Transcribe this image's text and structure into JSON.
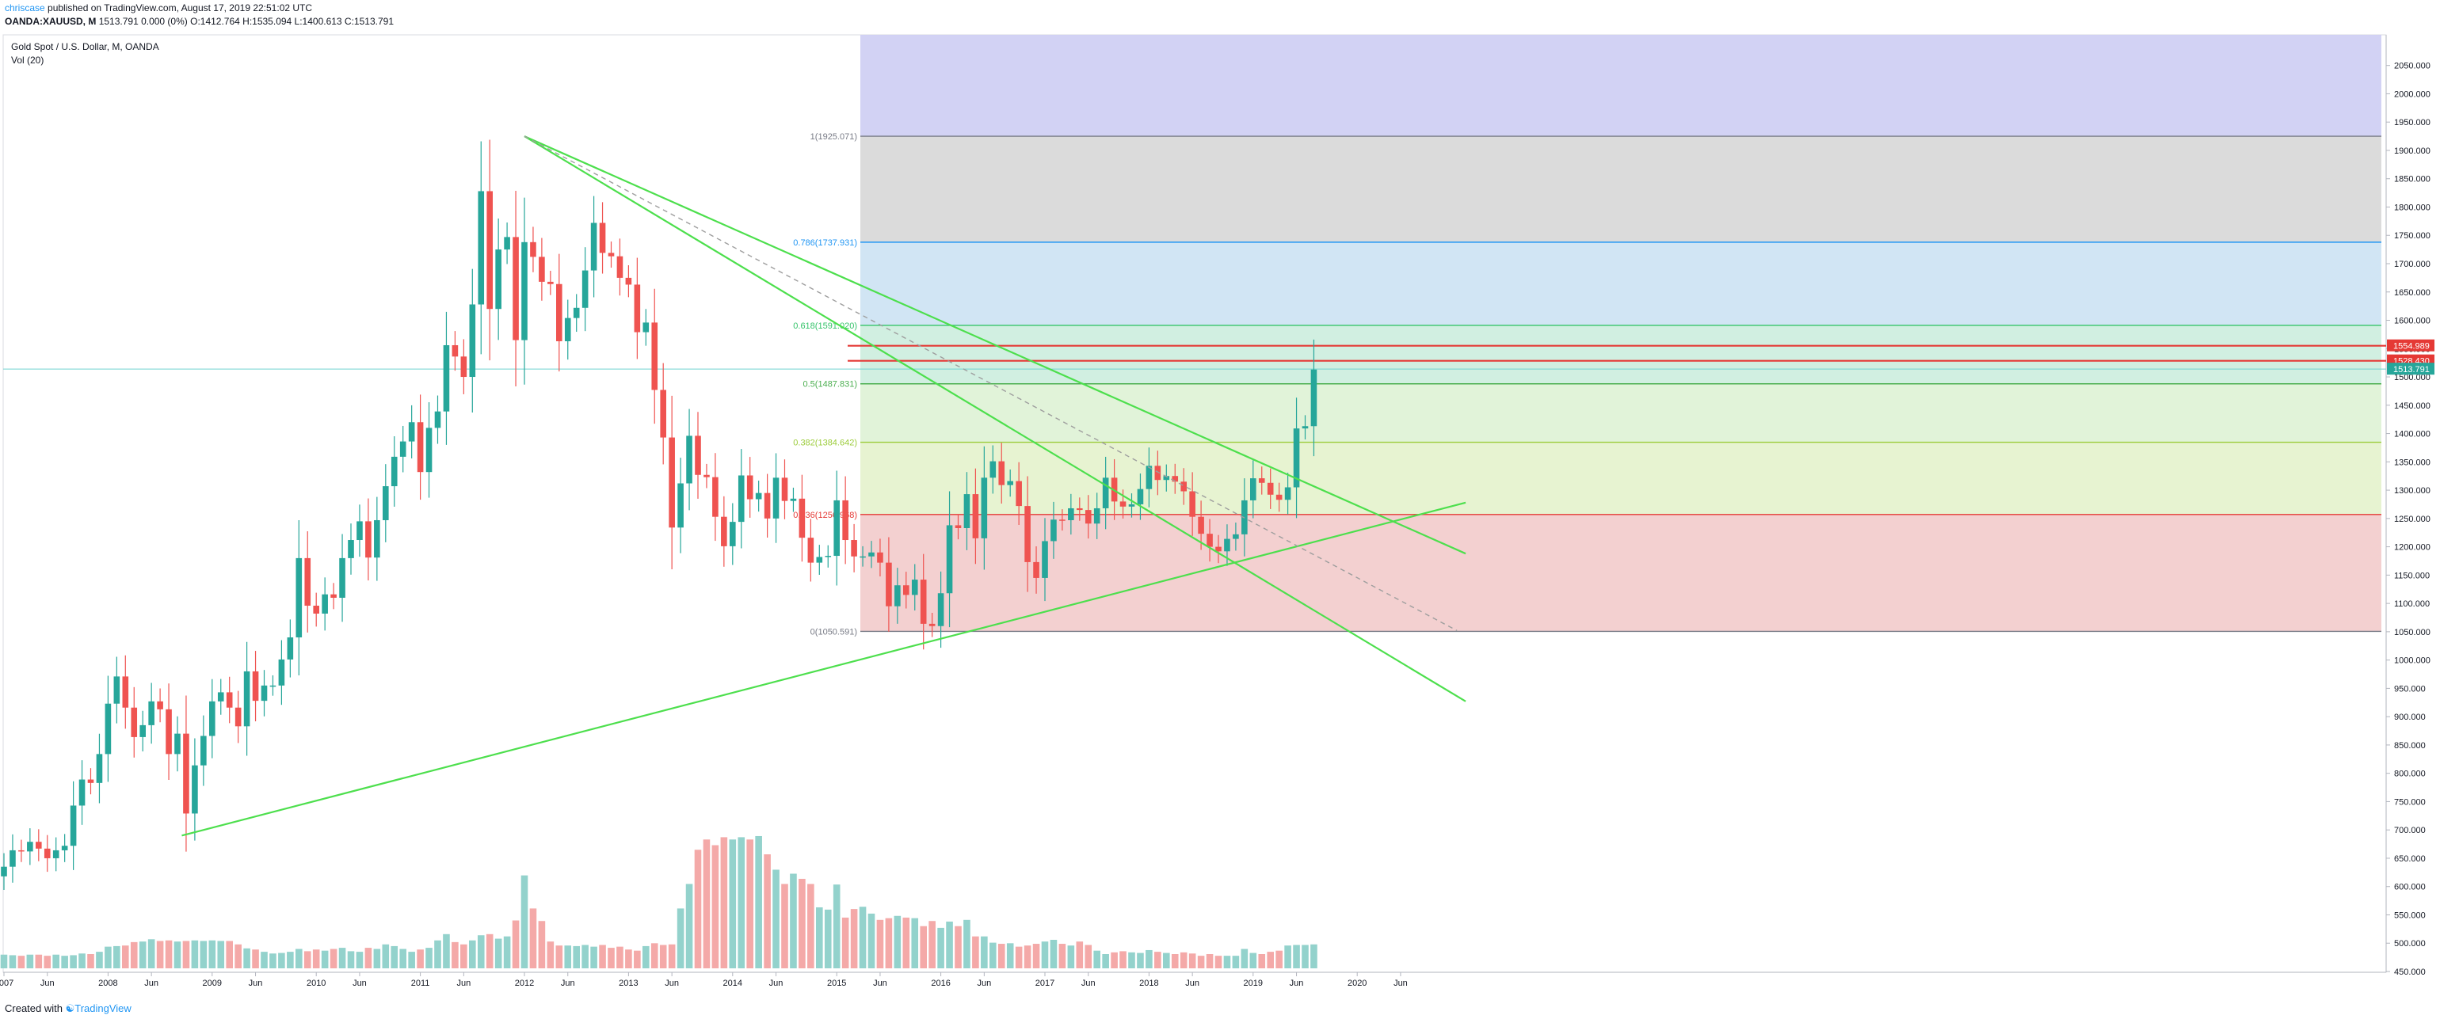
{
  "header": {
    "author": "chriscase",
    "published_text": "published on TradingView.com, August 17, 2019 22:51:02 UTC",
    "symbol": "OANDA:XAUUSD, M",
    "quote": "1513.791 0.000 (0%) O:1412.764 H:1535.094 L:1400.613 C:1513.791"
  },
  "footer": {
    "created_with": "Created with",
    "brand": "TradingView"
  },
  "chart_data": {
    "type": "candlestick",
    "title": "Gold Spot / U.S. Dollar, M, OANDA",
    "volume_label": "Vol (20)",
    "ylim": [
      430,
      2090
    ],
    "y_ticks": [
      "450.000",
      "500.000",
      "550.000",
      "600.000",
      "650.000",
      "700.000",
      "750.000",
      "800.000",
      "850.000",
      "900.000",
      "950.000",
      "1000.000",
      "1050.000",
      "1100.000",
      "1150.000",
      "1200.000",
      "1250.000",
      "1300.000",
      "1350.000",
      "1400.000",
      "1450.000",
      "1500.000",
      "1550.000",
      "1600.000",
      "1650.000",
      "1700.000",
      "1750.000",
      "1800.000",
      "1850.000",
      "1900.000",
      "1950.000",
      "2000.000",
      "2050.000"
    ],
    "x_ticks": [
      {
        "label": "2007",
        "index": 0
      },
      {
        "label": "Jun",
        "index": 5
      },
      {
        "label": "2008",
        "index": 12
      },
      {
        "label": "Jun",
        "index": 17
      },
      {
        "label": "2009",
        "index": 24
      },
      {
        "label": "Jun",
        "index": 29
      },
      {
        "label": "2010",
        "index": 36
      },
      {
        "label": "Jun",
        "index": 41
      },
      {
        "label": "2011",
        "index": 48
      },
      {
        "label": "Jun",
        "index": 53
      },
      {
        "label": "2012",
        "index": 60
      },
      {
        "label": "Jun",
        "index": 65
      },
      {
        "label": "2013",
        "index": 72
      },
      {
        "label": "Jun",
        "index": 77
      },
      {
        "label": "2014",
        "index": 84
      },
      {
        "label": "Jun",
        "index": 89
      },
      {
        "label": "2015",
        "index": 96
      },
      {
        "label": "Jun",
        "index": 101
      },
      {
        "label": "2016",
        "index": 108
      },
      {
        "label": "Jun",
        "index": 113
      },
      {
        "label": "2017",
        "index": 120
      },
      {
        "label": "Jun",
        "index": 125
      },
      {
        "label": "2018",
        "index": 132
      },
      {
        "label": "Jun",
        "index": 137
      },
      {
        "label": "2019",
        "index": 144
      },
      {
        "label": "Jun",
        "index": 149
      },
      {
        "label": "2020",
        "index": 156
      },
      {
        "label": "Jun",
        "index": 161
      }
    ],
    "closes": [
      635,
      664,
      662,
      679,
      667,
      650,
      664,
      672,
      743,
      789,
      783,
      834,
      923,
      971,
      916,
      864,
      885,
      927,
      913,
      834,
      870,
      729,
      814,
      866,
      927,
      943,
      916,
      883,
      980,
      928,
      955,
      955,
      1001,
      1040,
      1180,
      1096,
      1082,
      1116,
      1110,
      1180,
      1212,
      1245,
      1181,
      1247,
      1307,
      1359,
      1386,
      1420,
      1332,
      1410,
      1439,
      1556,
      1536,
      1500,
      1628,
      1828,
      1620,
      1725,
      1747,
      1565,
      1738,
      1712,
      1668,
      1664,
      1563,
      1604,
      1622,
      1688,
      1772,
      1719,
      1713,
      1675,
      1663,
      1579,
      1596,
      1477,
      1393,
      1234,
      1312,
      1396,
      1327,
      1323,
      1253,
      1201,
      1244,
      1326,
      1284,
      1295,
      1250,
      1322,
      1281,
      1285,
      1216,
      1172,
      1182,
      1184,
      1282,
      1212,
      1183,
      1183,
      1190,
      1172,
      1095,
      1132,
      1115,
      1142,
      1064,
      1060,
      1118,
      1238,
      1233,
      1293,
      1215,
      1322,
      1351,
      1309,
      1316,
      1272,
      1173,
      1145,
      1210,
      1248,
      1247,
      1268,
      1265,
      1241,
      1268,
      1322,
      1280,
      1271,
      1275,
      1302,
      1343,
      1318,
      1325,
      1315,
      1298,
      1253,
      1223,
      1200,
      1192,
      1214,
      1222,
      1282,
      1321,
      1313,
      1292,
      1283,
      1305,
      1409,
      1413,
      1513
    ],
    "volumes": [
      24,
      23,
      22,
      24,
      24,
      22,
      24,
      22,
      23,
      26,
      25,
      29,
      38,
      39,
      40,
      46,
      47,
      51,
      48,
      49,
      47,
      48,
      49,
      48,
      49,
      48,
      48,
      42,
      35,
      33,
      29,
      26,
      27,
      29,
      34,
      30,
      33,
      31,
      34,
      36,
      30,
      29,
      36,
      34,
      42,
      39,
      34,
      29,
      33,
      36,
      49,
      60,
      46,
      42,
      49,
      58,
      60,
      52,
      56,
      84,
      163,
      105,
      83,
      47,
      40,
      40,
      39,
      41,
      38,
      41,
      36,
      38,
      33,
      31,
      39,
      44,
      41,
      42,
      105,
      148,
      208,
      226,
      216,
      230,
      226,
      230,
      226,
      232,
      200,
      173,
      148,
      166,
      157,
      148,
      107,
      103,
      147,
      89,
      104,
      108,
      96,
      85,
      88,
      92,
      89,
      88,
      74,
      83,
      71,
      82,
      74,
      85,
      56,
      56,
      45,
      43,
      44,
      38,
      40,
      43,
      47,
      50,
      43,
      40,
      47,
      41,
      31,
      25,
      28,
      30,
      28,
      27,
      32,
      29,
      27,
      25,
      28,
      26,
      22,
      25,
      22,
      22,
      22,
      34,
      27,
      25,
      29,
      31,
      40,
      41,
      41,
      42
    ],
    "volume_ylim": [
      0,
      240
    ],
    "fibonacci": {
      "high": 1925.071,
      "low": 1050.591,
      "levels": [
        {
          "ratio": 1,
          "price": 1925.071,
          "label": "1(1925.071)",
          "color": "#787b86",
          "fill": "#d9d9d9"
        },
        {
          "ratio": 0.786,
          "price": 1737.931,
          "label": "0.786(1737.931)",
          "color": "#2196f3",
          "fill": "#cfe4f3"
        },
        {
          "ratio": 0.618,
          "price": 1591.02,
          "label": "0.618(1591.020)",
          "color": "#35c36a",
          "fill": "#cfeedf"
        },
        {
          "ratio": 0.5,
          "price": 1487.831,
          "label": "0.5(1487.831)",
          "color": "#4caf50",
          "fill": "#dff2d7"
        },
        {
          "ratio": 0.382,
          "price": 1384.642,
          "label": "0.382(1384.642)",
          "color": "#9ccc3b",
          "fill": "#e6f2cf"
        },
        {
          "ratio": 0.236,
          "price": 1256.968,
          "label": "0.236(1256.968)",
          "color": "#e53935",
          "fill": "#f2cdcd"
        },
        {
          "ratio": 0,
          "price": 1050.591,
          "label": "0(1050.591)",
          "color": "#787b86",
          "fill": null
        }
      ],
      "extension_fill": "#d0d0f3"
    },
    "price_lines": [
      {
        "price": 1554.989,
        "label": "1554.989",
        "color": "#e53935"
      },
      {
        "price": 1528.43,
        "label": "1528.430",
        "color": "#e53935"
      }
    ],
    "last_price": {
      "price": 1513.791,
      "label": "1513.791",
      "color": "#26a69a",
      "line_color": "#6fd3d0"
    },
    "trendlines": [
      {
        "from": [
          20.5,
          690
        ],
        "to": [
          168.5,
          1278
        ],
        "color": "#4ddf4d"
      },
      {
        "from": [
          60,
          1925
        ],
        "to": [
          168.5,
          1188
        ],
        "color": "#4ddf4d"
      },
      {
        "from": [
          60,
          1925
        ],
        "to": [
          168.5,
          927
        ],
        "color": "#4ddf4d"
      }
    ],
    "dashed_trendline": {
      "from": [
        60,
        1925
      ],
      "to": [
        167.5,
        1052
      ],
      "color": "#9e9e9e"
    },
    "colors": {
      "up": "#26a69a",
      "down": "#ef5350",
      "vol_up": "#93d2cc",
      "vol_down": "#f4a9a8"
    }
  }
}
